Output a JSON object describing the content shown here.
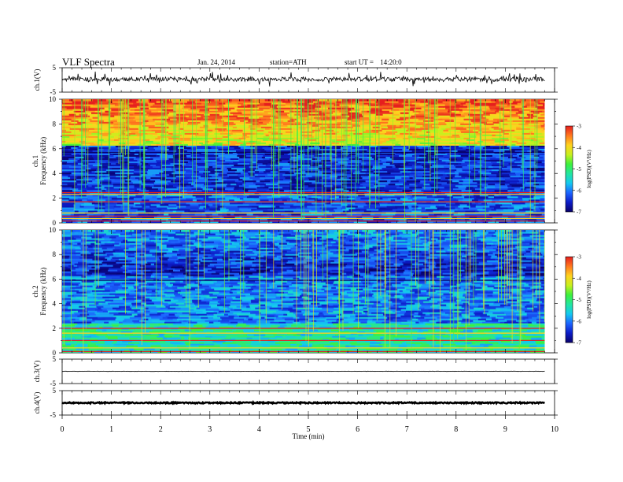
{
  "header": {
    "title": "VLF Spectra",
    "date": "Jan. 24, 2014",
    "station": "station=ATH",
    "start_label": "start UT =",
    "start_time": "14:20:0"
  },
  "colors": {
    "background": "#ffffff",
    "trace": "#000000",
    "colormap": [
      "#08006a",
      "#0c1cc8",
      "#1c64ff",
      "#14c8f0",
      "#22e6a0",
      "#3cf03c",
      "#c8f01e",
      "#ffd21e",
      "#ff781e",
      "#e61e1e",
      "#ffffff"
    ]
  },
  "chart_data": [
    {
      "type": "line",
      "ylabel": "ch.1(V)",
      "ylim": [
        -5,
        5
      ],
      "y_ticks": [
        "5",
        "-5"
      ],
      "series": [
        {
          "baseline": 0.3,
          "noise": 0.9
        }
      ]
    },
    {
      "type": "heatmap",
      "ylabel_top": "ch.1",
      "ylabel": "Frequency (kHz)",
      "ylim": [
        0,
        10
      ],
      "y_ticks": [
        "0",
        "2",
        "4",
        "6",
        "8",
        "10"
      ],
      "colorbar": {
        "label": "log(PSD)(V²/Hz)",
        "range": [
          -7,
          -3
        ],
        "ticks": [
          "-3",
          "-4",
          "-5",
          "-6",
          "-7"
        ]
      },
      "profile": {
        "high_band_kHz": [
          6.3,
          10
        ],
        "high_band_level": [
          -4.2,
          -3.2
        ],
        "mid_band_kHz": [
          2.5,
          6.3
        ],
        "mid_band_level": -6.4,
        "low_band_kHz": [
          0,
          2.5
        ],
        "low_band_level": -6.2,
        "lines_kHz": [
          0.15,
          0.35,
          0.55,
          0.8,
          1.7,
          2.3,
          2.45,
          5.7
        ],
        "spikes": 120
      }
    },
    {
      "type": "heatmap",
      "ylabel_top": "ch.2",
      "ylabel": "Frequency (kHz)",
      "ylim": [
        0,
        10
      ],
      "y_ticks": [
        "0",
        "2",
        "4",
        "6",
        "8",
        "10"
      ],
      "colorbar": {
        "label": "log(PSD)(V²/Hz)",
        "range": [
          -7,
          -3
        ],
        "ticks": [
          "-3",
          "-4",
          "-5",
          "-6",
          "-7"
        ]
      },
      "profile": {
        "high_band_kHz": [
          6.3,
          10
        ],
        "high_band_level": [
          -6.6,
          -5.9
        ],
        "mid_band_kHz": [
          2.5,
          6.3
        ],
        "mid_band_level": -6.0,
        "low_band_kHz": [
          0,
          2.5
        ],
        "low_band_level": -5.3,
        "lines_kHz": [
          0.1,
          0.4,
          1.0,
          1.6,
          2.0,
          5.9
        ],
        "spikes": 90
      }
    },
    {
      "type": "line",
      "ylabel": "ch.3(V)",
      "ylim": [
        -5,
        5
      ],
      "y_ticks": [
        "5",
        "-5"
      ],
      "series": [
        {
          "baseline": 0,
          "noise": 0.08
        }
      ]
    },
    {
      "type": "line",
      "ylabel": "ch.4(V)",
      "ylim": [
        -5,
        5
      ],
      "y_ticks": [
        "5",
        "-5"
      ],
      "series": [
        {
          "baseline": 0,
          "noise": 0.25
        }
      ]
    }
  ],
  "x_axis": {
    "label": "Time (min)",
    "range": [
      0,
      10
    ],
    "data_end": 9.8,
    "ticks": [
      "0",
      "1",
      "2",
      "3",
      "4",
      "5",
      "6",
      "7",
      "8",
      "9",
      "10"
    ]
  }
}
